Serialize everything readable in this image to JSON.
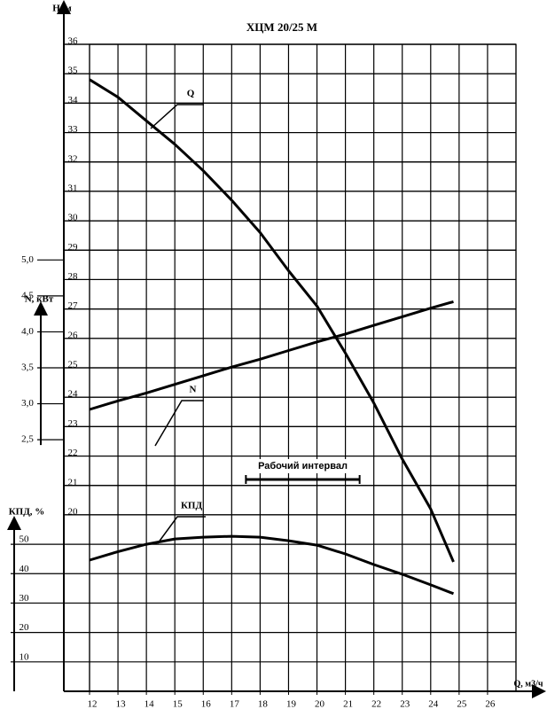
{
  "chart_data": {
    "type": "line",
    "title": "ХЦМ 20/25 М",
    "x_label": "Q, м3/ч",
    "y_label": "Н, м",
    "y2_label": "N, кВт",
    "y3_label": "КПД, %",
    "x": [
      12,
      13,
      14,
      15,
      16,
      17,
      18,
      19,
      20,
      21,
      22,
      23,
      24,
      24.8
    ],
    "xlim": [
      12,
      27
    ],
    "xticks": [
      12,
      13,
      14,
      15,
      16,
      17,
      18,
      19,
      20,
      21,
      22,
      23,
      24,
      25,
      26
    ],
    "ylim": [
      14,
      36
    ],
    "yticks": [
      20,
      21,
      22,
      23,
      24,
      25,
      26,
      27,
      28,
      29,
      30,
      31,
      32,
      33,
      34,
      35,
      36
    ],
    "y2lim": [
      -1,
      8
    ],
    "y2ticks": [
      {
        "value": 2.5,
        "label": "2,5"
      },
      {
        "value": 3.0,
        "label": "3,0"
      },
      {
        "value": 3.5,
        "label": "3,5"
      },
      {
        "value": 4.0,
        "label": "4,0"
      },
      {
        "value": 4.5,
        "label": "4,5"
      },
      {
        "value": 5.0,
        "label": "5,0"
      }
    ],
    "y3lim": [
      0,
      220
    ],
    "y3ticks": [
      10,
      20,
      30,
      40,
      50
    ],
    "grid": true,
    "series": [
      {
        "name": "Q",
        "color": "#000000",
        "axis": "y",
        "values": [
          34.8,
          34.2,
          33.4,
          32.6,
          31.7,
          30.7,
          29.6,
          28.3,
          27.1,
          25.5,
          23.8,
          21.9,
          20.2,
          18.4
        ]
      },
      {
        "name": "N",
        "color": "#000000",
        "axis": "y2",
        "values": [
          2.92,
          3.04,
          3.15,
          3.27,
          3.39,
          3.51,
          3.62,
          3.74,
          3.86,
          3.97,
          4.09,
          4.21,
          4.33,
          4.42
        ]
      },
      {
        "name": "КПД",
        "color": "#000000",
        "axis": "y3",
        "values": [
          44.6,
          47.5,
          50,
          51.8,
          52.4,
          52.7,
          52.4,
          51.2,
          49.7,
          46.7,
          43.1,
          39.8,
          36.2,
          33.2
        ]
      }
    ],
    "working_interval": {
      "label": "Рабочий интервал",
      "from": 17.5,
      "to": 21.5
    }
  }
}
